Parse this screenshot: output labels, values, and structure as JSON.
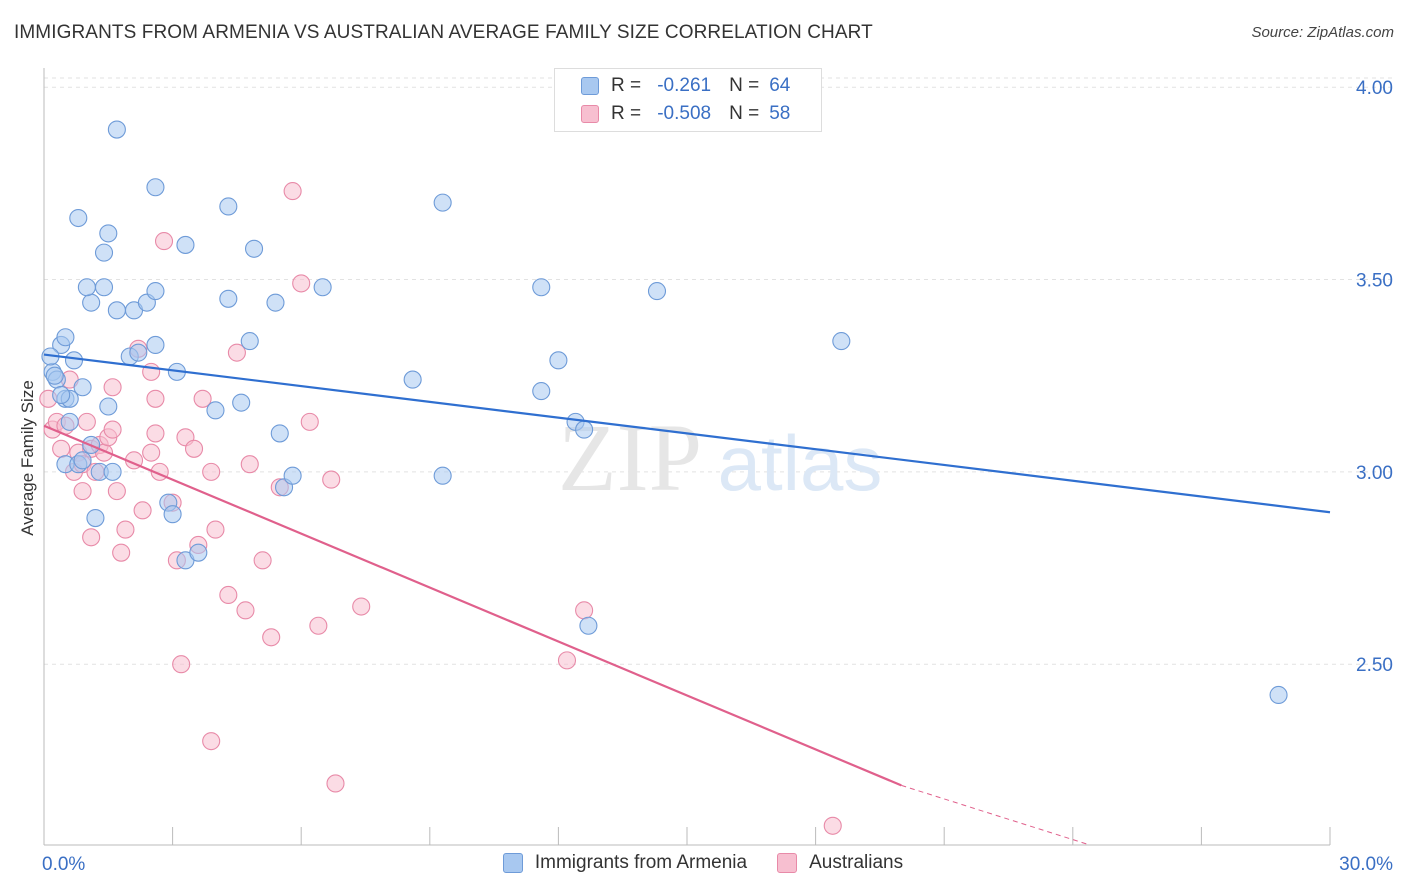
{
  "chart_data": {
    "type": "scatter",
    "title": "IMMIGRANTS FROM ARMENIA VS AUSTRALIAN AVERAGE FAMILY SIZE CORRELATION CHART",
    "source": "Source: ZipAtlas.com",
    "xlabel": "",
    "ylabel": "Average Family Size",
    "xlim": [
      0,
      30
    ],
    "ylim": [
      2.03,
      4.05
    ],
    "x_tick_labels": [
      {
        "value": 0,
        "label": "0.0%"
      },
      {
        "value": 30,
        "label": "30.0%"
      }
    ],
    "y_ticks": [
      {
        "value": 2.5,
        "label": "2.50"
      },
      {
        "value": 3.0,
        "label": "3.00"
      },
      {
        "value": 3.5,
        "label": "3.50"
      },
      {
        "value": 4.0,
        "label": "4.00"
      }
    ],
    "watermark": "ZIPatlas",
    "colors": {
      "blue_fill": "#a8c8f0",
      "blue_stroke": "#6e9bd8",
      "blue_line": "#2f6fd0",
      "pink_fill": "#f7bfd0",
      "pink_stroke": "#e88aa8",
      "pink_line": "#e0608c",
      "grid": "#e2e2e2",
      "tick_label": "#3a6fc4"
    },
    "legend": [
      {
        "r_label": "R =",
        "r_value": "-0.261",
        "n_label": "N =",
        "n_value": "64"
      },
      {
        "r_label": "R =",
        "r_value": "-0.508",
        "n_label": "N =",
        "n_value": "58"
      }
    ],
    "series": [
      {
        "name": "Immigrants from Armenia",
        "trend": {
          "x1": 0,
          "y1": 3.305,
          "x2": 30,
          "y2": 2.895
        },
        "points": [
          [
            0.2,
            3.26
          ],
          [
            0.3,
            3.24
          ],
          [
            0.5,
            3.19
          ],
          [
            0.6,
            3.19
          ],
          [
            0.4,
            3.33
          ],
          [
            0.5,
            3.35
          ],
          [
            0.7,
            3.29
          ],
          [
            0.9,
            3.22
          ],
          [
            0.6,
            3.13
          ],
          [
            0.5,
            3.02
          ],
          [
            0.8,
            3.02
          ],
          [
            0.9,
            3.03
          ],
          [
            1.1,
            3.07
          ],
          [
            1.3,
            3.0
          ],
          [
            1.2,
            2.88
          ],
          [
            1.5,
            3.17
          ],
          [
            1.6,
            3.0
          ],
          [
            1.1,
            3.44
          ],
          [
            1.0,
            3.48
          ],
          [
            1.4,
            3.48
          ],
          [
            1.4,
            3.57
          ],
          [
            1.5,
            3.62
          ],
          [
            0.8,
            3.66
          ],
          [
            1.7,
            3.42
          ],
          [
            2.1,
            3.42
          ],
          [
            2.4,
            3.44
          ],
          [
            2.6,
            3.47
          ],
          [
            2.0,
            3.3
          ],
          [
            2.6,
            3.33
          ],
          [
            2.9,
            2.92
          ],
          [
            3.0,
            2.89
          ],
          [
            3.3,
            2.77
          ],
          [
            3.6,
            2.79
          ],
          [
            3.3,
            3.59
          ],
          [
            2.6,
            3.74
          ],
          [
            4.3,
            3.69
          ],
          [
            4.9,
            3.58
          ],
          [
            4.3,
            3.45
          ],
          [
            5.4,
            3.44
          ],
          [
            4.8,
            3.34
          ],
          [
            4.0,
            3.16
          ],
          [
            4.6,
            3.18
          ],
          [
            5.6,
            2.96
          ],
          [
            5.8,
            2.99
          ],
          [
            6.5,
            3.48
          ],
          [
            8.6,
            3.24
          ],
          [
            9.3,
            3.7
          ],
          [
            9.3,
            2.99
          ],
          [
            11.6,
            3.48
          ],
          [
            11.6,
            3.21
          ],
          [
            12.0,
            3.29
          ],
          [
            12.4,
            3.13
          ],
          [
            12.6,
            3.11
          ],
          [
            14.3,
            3.47
          ],
          [
            12.7,
            2.6
          ],
          [
            18.6,
            3.34
          ],
          [
            28.8,
            2.42
          ],
          [
            1.7,
            3.89
          ],
          [
            0.25,
            3.25
          ],
          [
            0.15,
            3.3
          ],
          [
            0.4,
            3.2
          ],
          [
            2.2,
            3.31
          ],
          [
            3.1,
            3.26
          ],
          [
            5.5,
            3.1
          ]
        ]
      },
      {
        "name": "Australians",
        "trend": {
          "x1": 0,
          "y1": 3.12,
          "x2": 20.0,
          "y2": 2.185,
          "dash_x2": 24.4,
          "dash_y2": 1.98
        },
        "points": [
          [
            0.1,
            3.19
          ],
          [
            0.2,
            3.11
          ],
          [
            0.3,
            3.13
          ],
          [
            0.4,
            3.06
          ],
          [
            0.5,
            3.12
          ],
          [
            0.6,
            3.24
          ],
          [
            0.7,
            3.0
          ],
          [
            0.8,
            3.05
          ],
          [
            0.9,
            3.02
          ],
          [
            1.0,
            3.13
          ],
          [
            1.1,
            3.06
          ],
          [
            1.2,
            3.0
          ],
          [
            1.3,
            3.07
          ],
          [
            1.4,
            3.05
          ],
          [
            1.5,
            3.09
          ],
          [
            1.6,
            3.11
          ],
          [
            1.7,
            2.95
          ],
          [
            1.8,
            2.79
          ],
          [
            1.9,
            2.85
          ],
          [
            2.1,
            3.03
          ],
          [
            2.3,
            2.9
          ],
          [
            2.5,
            3.05
          ],
          [
            2.6,
            3.19
          ],
          [
            2.7,
            3.0
          ],
          [
            2.8,
            3.6
          ],
          [
            3.0,
            2.92
          ],
          [
            3.1,
            2.77
          ],
          [
            3.3,
            3.09
          ],
          [
            3.5,
            3.06
          ],
          [
            3.6,
            2.81
          ],
          [
            3.7,
            3.19
          ],
          [
            3.9,
            3.0
          ],
          [
            4.0,
            2.85
          ],
          [
            4.3,
            2.68
          ],
          [
            4.5,
            3.31
          ],
          [
            4.7,
            2.64
          ],
          [
            4.8,
            3.02
          ],
          [
            5.1,
            2.77
          ],
          [
            5.3,
            2.57
          ],
          [
            5.5,
            2.96
          ],
          [
            5.8,
            3.73
          ],
          [
            6.0,
            3.49
          ],
          [
            6.2,
            3.13
          ],
          [
            6.4,
            2.6
          ],
          [
            6.7,
            2.98
          ],
          [
            6.8,
            2.19
          ],
          [
            7.4,
            2.65
          ],
          [
            1.1,
            2.83
          ],
          [
            2.2,
            3.32
          ],
          [
            2.5,
            3.26
          ],
          [
            3.2,
            2.5
          ],
          [
            3.9,
            2.3
          ],
          [
            12.2,
            2.51
          ],
          [
            12.6,
            2.64
          ],
          [
            18.4,
            2.08
          ],
          [
            0.9,
            2.95
          ],
          [
            1.6,
            3.22
          ],
          [
            2.6,
            3.1
          ]
        ]
      }
    ]
  }
}
